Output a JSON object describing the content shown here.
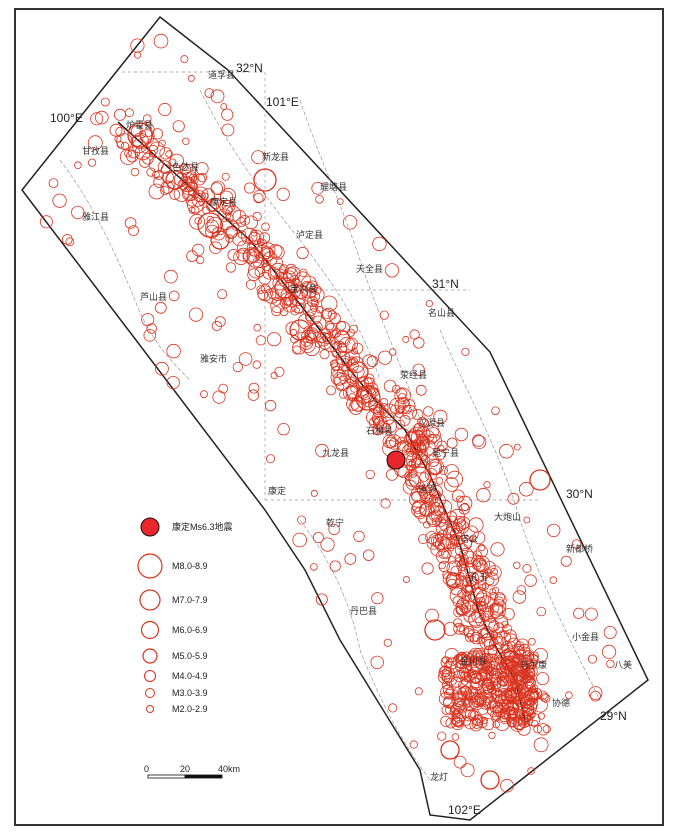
{
  "map": {
    "coords": {
      "lat_32": "32°N",
      "lon_101": "101°E",
      "lon_100": "100°E",
      "lat_31": "31°N",
      "lat_30": "30°N",
      "lat_29": "29°N",
      "lon_102": "102°E"
    },
    "places": [
      "道孚县",
      "炉霍县",
      "甘孜县",
      "色达县",
      "新龙县",
      "理塘县",
      "雅江县",
      "康定县",
      "泸定县",
      "天全县",
      "宝兴县",
      "芦山县",
      "名山县",
      "雅安市",
      "荥经县",
      "汉源县",
      "石棉县",
      "九龙县",
      "冕宁县",
      "道孚",
      "康定",
      "大炮山",
      "乾宁",
      "塔公",
      "新都桥",
      "孔玉",
      "丹巴县",
      "小金县",
      "金川县",
      "马尔康",
      "八美",
      "协德",
      "龙灯",
      "中谷",
      "格西"
    ],
    "epicenter": {
      "color": "#e8262c"
    },
    "quake_color": "#d9331f"
  },
  "legend": {
    "epicenter_label": "康定Ms6.3地震",
    "items": [
      {
        "label": "M8.0-8.9"
      },
      {
        "label": "M7.0-7.9"
      },
      {
        "label": "M6.0-6.9"
      },
      {
        "label": "M5.0-5.9"
      },
      {
        "label": "M4.0-4.9"
      },
      {
        "label": "M3.0-3.9"
      },
      {
        "label": "M2.0-2.9"
      }
    ]
  },
  "scale": {
    "ticks": [
      "0",
      "20",
      "40km"
    ]
  }
}
